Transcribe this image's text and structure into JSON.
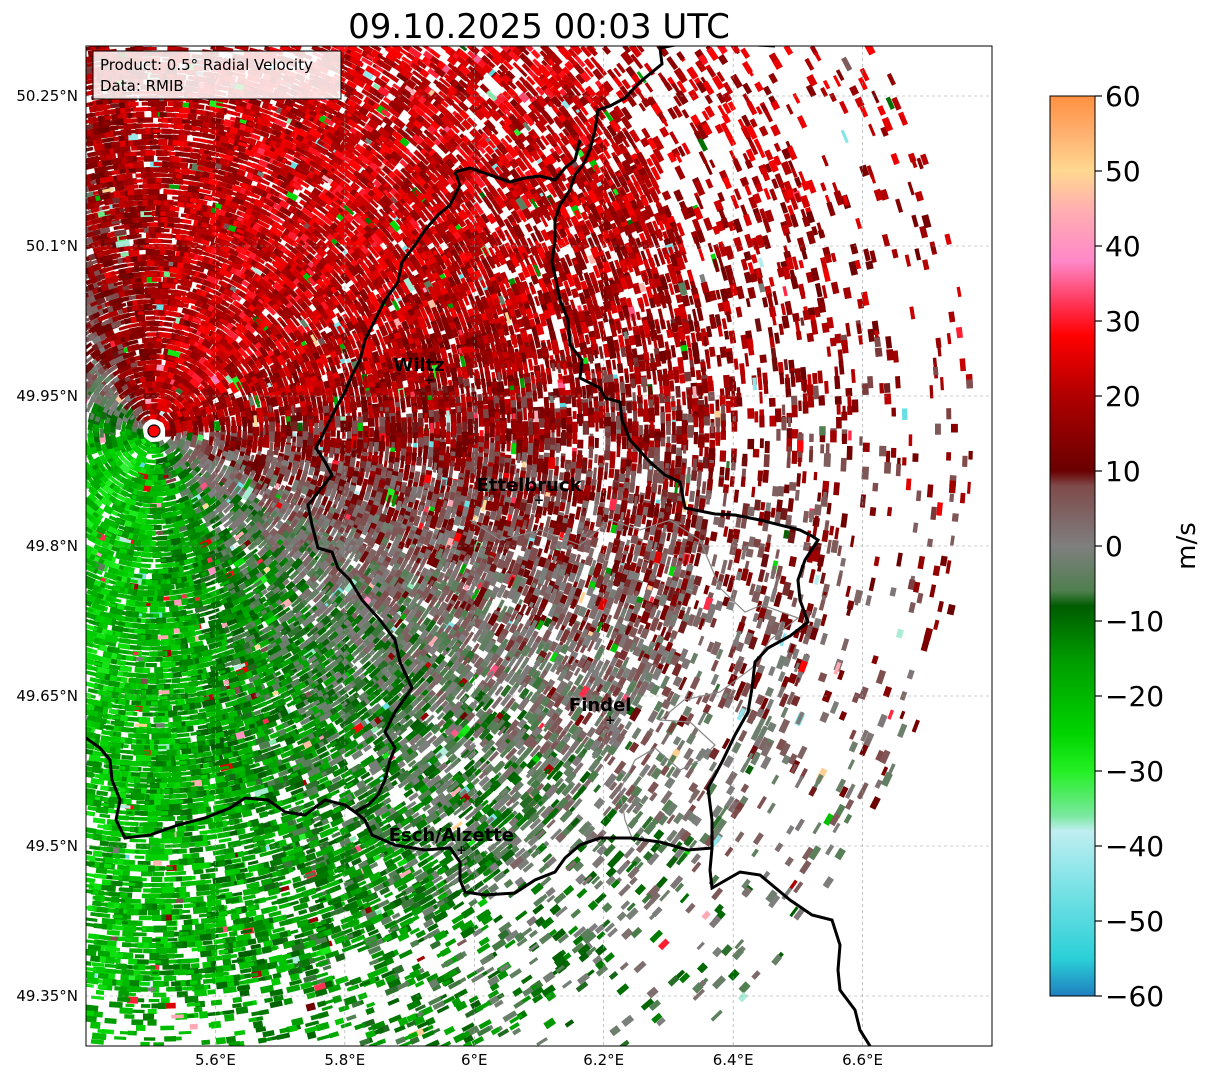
{
  "title": "09.10.2025 00:03 UTC",
  "info_box": {
    "product": "Product: 0.5° Radial Velocity",
    "source": "Data: RMIB"
  },
  "map": {
    "lon_ticks": [
      {
        "value": 5.6,
        "label": "5.6°E"
      },
      {
        "value": 5.8,
        "label": "5.8°E"
      },
      {
        "value": 6.0,
        "label": "6°E"
      },
      {
        "value": 6.2,
        "label": "6.2°E"
      },
      {
        "value": 6.4,
        "label": "6.4°E"
      },
      {
        "value": 6.6,
        "label": "6.6°E"
      }
    ],
    "lat_ticks": [
      {
        "value": 50.25,
        "label": "50.25°N"
      },
      {
        "value": 50.1,
        "label": "50.1°N"
      },
      {
        "value": 49.95,
        "label": "49.95°N"
      },
      {
        "value": 49.8,
        "label": "49.8°N"
      },
      {
        "value": 49.65,
        "label": "49.65°N"
      },
      {
        "value": 49.5,
        "label": "49.5°N"
      },
      {
        "value": 49.35,
        "label": "49.35°N"
      }
    ],
    "extent": {
      "lon_min": 5.4,
      "lon_max": 6.8,
      "lat_min": 49.3,
      "lat_max": 50.3
    },
    "grid": true,
    "radar_site": {
      "lon": 5.505,
      "lat": 49.915
    },
    "cities": [
      {
        "name": "Wiltz",
        "lon": 5.93,
        "lat": 49.967
      },
      {
        "name": "Ettelbruck",
        "lon": 6.1,
        "lat": 49.847
      },
      {
        "name": "Findel",
        "lon": 6.21,
        "lat": 49.627
      },
      {
        "name": "Esch/Alzette",
        "lon": 5.98,
        "lat": 49.497
      }
    ]
  },
  "colorbar": {
    "label": "m/s",
    "min": -60,
    "max": 60,
    "ticks": [
      {
        "value": 60,
        "label": "60"
      },
      {
        "value": 50,
        "label": "50"
      },
      {
        "value": 40,
        "label": "40"
      },
      {
        "value": 30,
        "label": "30"
      },
      {
        "value": 20,
        "label": "20"
      },
      {
        "value": 10,
        "label": "10"
      },
      {
        "value": 0,
        "label": "0"
      },
      {
        "value": -10,
        "label": "−10"
      },
      {
        "value": -20,
        "label": "−20"
      },
      {
        "value": -30,
        "label": "−30"
      },
      {
        "value": -40,
        "label": "−40"
      },
      {
        "value": -50,
        "label": "−50"
      },
      {
        "value": -60,
        "label": "−60"
      }
    ],
    "stops": [
      {
        "v": -60,
        "c": "#1f7fbf"
      },
      {
        "v": -55,
        "c": "#2bd0d8"
      },
      {
        "v": -45,
        "c": "#7fe3e6"
      },
      {
        "v": -38,
        "c": "#c0eef0"
      },
      {
        "v": -36,
        "c": "#7be8a0"
      },
      {
        "v": -30,
        "c": "#23f023"
      },
      {
        "v": -25,
        "c": "#00d400"
      },
      {
        "v": -15,
        "c": "#009a00"
      },
      {
        "v": -8,
        "c": "#005c00"
      },
      {
        "v": -6,
        "c": "#4f7f4f"
      },
      {
        "v": 0,
        "c": "#7f7f7f"
      },
      {
        "v": 8,
        "c": "#7f4a4a"
      },
      {
        "v": 10,
        "c": "#6a0000"
      },
      {
        "v": 20,
        "c": "#b00000"
      },
      {
        "v": 28,
        "c": "#ff0000"
      },
      {
        "v": 32,
        "c": "#ff3050"
      },
      {
        "v": 38,
        "c": "#ff88c8"
      },
      {
        "v": 45,
        "c": "#ffb0b0"
      },
      {
        "v": 50,
        "c": "#ffd890"
      },
      {
        "v": 55,
        "c": "#ffb070"
      },
      {
        "v": 60,
        "c": "#ff9040"
      }
    ]
  },
  "colors": {
    "border": "#000000",
    "admin_border": "#888888",
    "radar_marker": "#ff0000"
  }
}
